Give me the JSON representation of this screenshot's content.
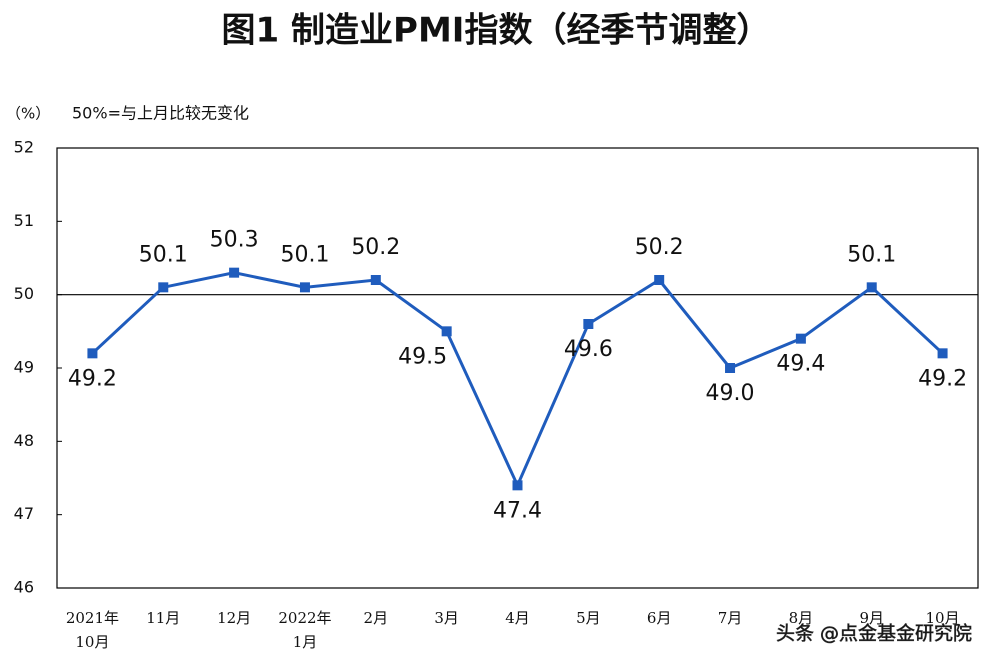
{
  "chart_data": {
    "type": "line",
    "title": "图1 制造业PMI指数（经季节调整）",
    "y_unit": "（%）",
    "annotation": "50%=与上月比较无变化",
    "categories": [
      "2021年\n10月",
      "11月",
      "12月",
      "2022年\n1月",
      "2月",
      "3月",
      "4月",
      "5月",
      "6月",
      "7月",
      "8月",
      "9月",
      "10月"
    ],
    "series": [
      {
        "name": "制造业PMI",
        "color": "#1f5cbd",
        "values": [
          49.2,
          50.1,
          50.3,
          50.1,
          50.2,
          49.5,
          47.4,
          49.6,
          50.2,
          49.0,
          49.4,
          50.1,
          49.2
        ],
        "value_labels": [
          "49.2",
          "50.1",
          "50.3",
          "50.1",
          "50.2",
          "49.5",
          "47.4",
          "49.6",
          "50.2",
          "49.0",
          "49.4",
          "50.1",
          "49.2"
        ]
      }
    ],
    "ylim": [
      46,
      52
    ],
    "yticks": [
      46,
      47,
      48,
      49,
      50,
      51,
      52
    ],
    "reference_line": 50,
    "watermark": "头条 @点金基金研究院"
  }
}
